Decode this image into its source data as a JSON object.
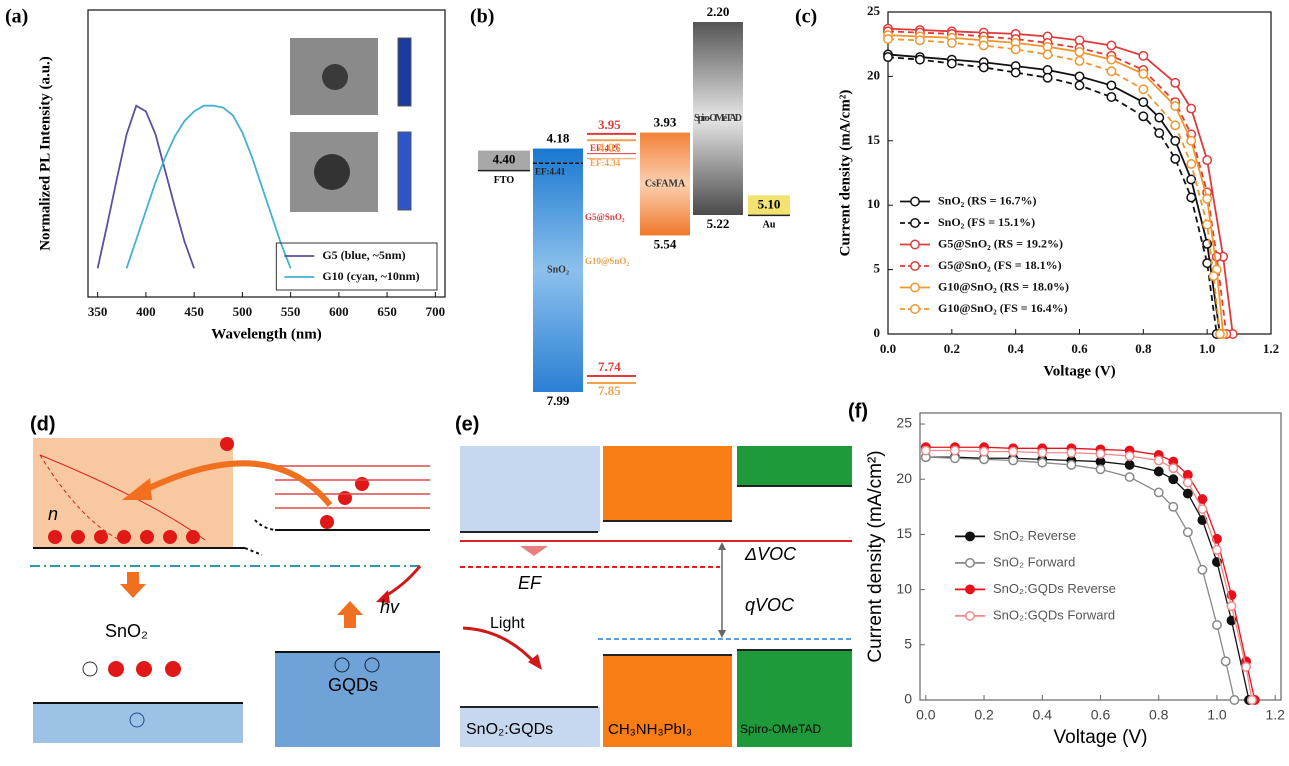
{
  "chart_data": [
    {
      "type": "line",
      "panel": "(a)",
      "xlabel": "Wavelength (nm)",
      "ylabel": "Normalized PL Intensity (a.u.)",
      "xlim": [
        340,
        710
      ],
      "ylim": [
        0,
        1.5
      ],
      "xticks": [
        350,
        400,
        450,
        500,
        550,
        600,
        650,
        700
      ],
      "legend": "lower right",
      "series": [
        {
          "name": "G5 (blue, ~5nm)",
          "color": "#5b4f9e",
          "x": [
            350,
            360,
            370,
            380,
            390,
            400,
            410,
            420,
            430,
            440,
            450
          ],
          "values": [
            0.15,
            0.38,
            0.62,
            0.85,
            1.0,
            0.97,
            0.85,
            0.66,
            0.47,
            0.29,
            0.15
          ]
        },
        {
          "name": "G10 (cyan, ~10nm)",
          "color": "#45b0d0",
          "x": [
            380,
            390,
            400,
            410,
            420,
            430,
            440,
            450,
            460,
            470,
            480,
            490,
            500,
            510,
            520,
            530,
            540,
            550
          ],
          "values": [
            0.15,
            0.3,
            0.45,
            0.6,
            0.73,
            0.84,
            0.92,
            0.97,
            1.0,
            1.0,
            0.99,
            0.95,
            0.86,
            0.73,
            0.58,
            0.43,
            0.28,
            0.15
          ]
        }
      ]
    },
    {
      "type": "line",
      "panel": "(c)",
      "xlabel": "Voltage (V)",
      "ylabel": "Current density (mA/cm²)",
      "xlim": [
        0,
        1.2
      ],
      "ylim": [
        0,
        25
      ],
      "xticks": [
        {
          "value": 0,
          "label": "0.0"
        },
        0.2,
        0.4,
        0.6,
        0.8,
        {
          "value": 1,
          "label": "1.0"
        },
        1.2
      ],
      "yticks": [
        0,
        5,
        10,
        15,
        20,
        25
      ],
      "legend": "lower left",
      "series": [
        {
          "name": "SnO₂ (RS = 16.7%)",
          "color": "#111111",
          "linestyle": "solid",
          "marker": "circle",
          "x": [
            0,
            0.1,
            0.2,
            0.3,
            0.4,
            0.5,
            0.6,
            0.7,
            0.8,
            0.85,
            0.9,
            0.95,
            1.0,
            1.04
          ],
          "values": [
            21.7,
            21.5,
            21.3,
            21.1,
            20.8,
            20.5,
            20.0,
            19.3,
            18.0,
            16.8,
            15.0,
            12.0,
            7.0,
            0
          ]
        },
        {
          "name": "SnO₂ (FS = 15.1%)",
          "color": "#111111",
          "linestyle": "dashed",
          "marker": "circle",
          "x": [
            0,
            0.1,
            0.2,
            0.3,
            0.4,
            0.5,
            0.6,
            0.7,
            0.8,
            0.85,
            0.9,
            0.95,
            1.0,
            1.03
          ],
          "values": [
            21.5,
            21.3,
            21.0,
            20.7,
            20.3,
            19.9,
            19.3,
            18.4,
            16.9,
            15.6,
            13.6,
            10.6,
            5.5,
            0
          ]
        },
        {
          "name": "G5@SnO₂ (RS = 19.2%)",
          "color": "#e03a3a",
          "linestyle": "solid",
          "marker": "circle",
          "x": [
            0,
            0.1,
            0.2,
            0.3,
            0.4,
            0.5,
            0.6,
            0.7,
            0.8,
            0.9,
            0.95,
            1.0,
            1.05,
            1.08
          ],
          "values": [
            23.7,
            23.6,
            23.5,
            23.4,
            23.3,
            23.1,
            22.8,
            22.4,
            21.6,
            19.5,
            17.5,
            13.5,
            6.0,
            0
          ]
        },
        {
          "name": "G5@SnO₂ (FS = 18.1%)",
          "color": "#e03a3a",
          "linestyle": "dashed",
          "marker": "circle",
          "x": [
            0,
            0.1,
            0.2,
            0.3,
            0.4,
            0.5,
            0.6,
            0.7,
            0.8,
            0.9,
            0.95,
            1.0,
            1.03,
            1.06
          ],
          "values": [
            23.5,
            23.4,
            23.3,
            23.1,
            22.9,
            22.6,
            22.2,
            21.6,
            20.5,
            18.0,
            15.5,
            11.0,
            6.0,
            0
          ]
        },
        {
          "name": "G10@SnO₂ (RS = 18.0%)",
          "color": "#f0962e",
          "linestyle": "solid",
          "marker": "circle",
          "x": [
            0,
            0.1,
            0.2,
            0.3,
            0.4,
            0.5,
            0.6,
            0.7,
            0.8,
            0.9,
            0.95,
            1.0,
            1.03,
            1.05
          ],
          "values": [
            23.2,
            23.1,
            23.0,
            22.8,
            22.6,
            22.3,
            21.9,
            21.3,
            20.2,
            17.7,
            15.0,
            10.5,
            5.0,
            0
          ]
        },
        {
          "name": "G10@SnO₂ (FS = 16.4%)",
          "color": "#f0962e",
          "linestyle": "dashed",
          "marker": "circle",
          "x": [
            0,
            0.1,
            0.2,
            0.3,
            0.4,
            0.5,
            0.6,
            0.7,
            0.8,
            0.9,
            0.95,
            1.0,
            1.02,
            1.04
          ],
          "values": [
            22.9,
            22.8,
            22.6,
            22.4,
            22.1,
            21.7,
            21.2,
            20.4,
            19.0,
            16.2,
            13.2,
            8.5,
            4.5,
            0
          ]
        }
      ]
    },
    {
      "type": "line",
      "panel": "(f)",
      "xlabel": "Voltage (V)",
      "ylabel": "Current density (mA/cm²)",
      "xlim": [
        -0.02,
        1.22
      ],
      "ylim": [
        0,
        26
      ],
      "xticks": [
        {
          "value": 0,
          "label": "0.0"
        },
        0.2,
        0.4,
        0.6,
        0.8,
        {
          "value": 1,
          "label": "1.0"
        },
        1.2
      ],
      "yticks": [
        0,
        5,
        10,
        15,
        20,
        25
      ],
      "legend": "center left",
      "series": [
        {
          "name": "SnO₂ Reverse",
          "color": "#111111",
          "marker": "filled",
          "x": [
            0,
            0.1,
            0.2,
            0.3,
            0.4,
            0.5,
            0.6,
            0.7,
            0.8,
            0.85,
            0.9,
            0.95,
            1.0,
            1.05,
            1.11
          ],
          "values": [
            22.0,
            22.0,
            21.9,
            21.9,
            21.8,
            21.7,
            21.6,
            21.3,
            20.7,
            20.0,
            18.7,
            16.3,
            12.5,
            7.2,
            0
          ]
        },
        {
          "name": "SnO₂ Forward",
          "color": "#888888",
          "marker": "open",
          "x": [
            0,
            0.1,
            0.2,
            0.3,
            0.4,
            0.5,
            0.6,
            0.7,
            0.8,
            0.85,
            0.9,
            0.95,
            1.0,
            1.03,
            1.06
          ],
          "values": [
            22.0,
            21.9,
            21.8,
            21.7,
            21.5,
            21.3,
            20.9,
            20.2,
            18.8,
            17.5,
            15.2,
            11.8,
            6.8,
            3.5,
            0
          ]
        },
        {
          "name": "SnO₂:GQDs Reverse",
          "color": "#e8101a",
          "marker": "filled",
          "x": [
            0,
            0.1,
            0.2,
            0.3,
            0.4,
            0.5,
            0.6,
            0.7,
            0.8,
            0.85,
            0.9,
            0.95,
            1.0,
            1.05,
            1.1,
            1.13
          ],
          "values": [
            22.9,
            22.9,
            22.9,
            22.8,
            22.8,
            22.8,
            22.7,
            22.6,
            22.2,
            21.6,
            20.4,
            18.2,
            14.6,
            9.5,
            3.5,
            0
          ]
        },
        {
          "name": "SnO₂:GQDs Forward",
          "color": "#f08a8a",
          "marker": "open",
          "x": [
            0,
            0.1,
            0.2,
            0.3,
            0.4,
            0.5,
            0.6,
            0.7,
            0.8,
            0.85,
            0.9,
            0.95,
            1.0,
            1.05,
            1.1,
            1.12
          ],
          "values": [
            22.6,
            22.6,
            22.5,
            22.5,
            22.4,
            22.4,
            22.3,
            22.1,
            21.7,
            21.0,
            19.7,
            17.3,
            13.6,
            8.5,
            3.0,
            0
          ]
        }
      ]
    }
  ],
  "energy_diagram": {
    "panel": "(b)",
    "blocks": [
      {
        "name": "FTO",
        "top": {
          "value": 4.4,
          "label": "4.40"
        }
      },
      {
        "name": "SnO₂",
        "top": 4.18,
        "bottom": 7.99,
        "fermi": {
          "value": 4.41,
          "label": "EF:4.41"
        }
      },
      {
        "name": "CsFAMA",
        "top": 3.93,
        "bottom": 5.54
      },
      {
        "name": "Spiro-OMeTAD",
        "top": {
          "value": 2.2,
          "label": "2.20"
        },
        "bottom": 5.22
      },
      {
        "name": "Au",
        "top": {
          "value": 5.1,
          "label": "5.10"
        }
      }
    ],
    "qd_levels": [
      {
        "name": "G5@SnO₂",
        "color": "#e03a3a",
        "lumo": 3.95,
        "fermi": {
          "value": 4.26,
          "label": "EF:4.26"
        },
        "homo": 7.74
      },
      {
        "name": "G10@SnO₂",
        "color": "#f0a050",
        "lumo": 4.05,
        "fermi": {
          "value": 4.34,
          "label": "EF:4.34"
        },
        "homo": 7.85
      }
    ]
  },
  "schematic_d": {
    "panel": "(d)",
    "labels": [
      "n",
      "SnO₂",
      "hv",
      "GQDs"
    ]
  },
  "schematic_e": {
    "panel": "(e)",
    "labels": [
      "ΔVOC",
      "EF",
      "qVOC",
      "Light",
      "SnO₂:GQDs",
      "CH₃NH₃PbI₃",
      "Spiro-OMeTAD"
    ]
  }
}
